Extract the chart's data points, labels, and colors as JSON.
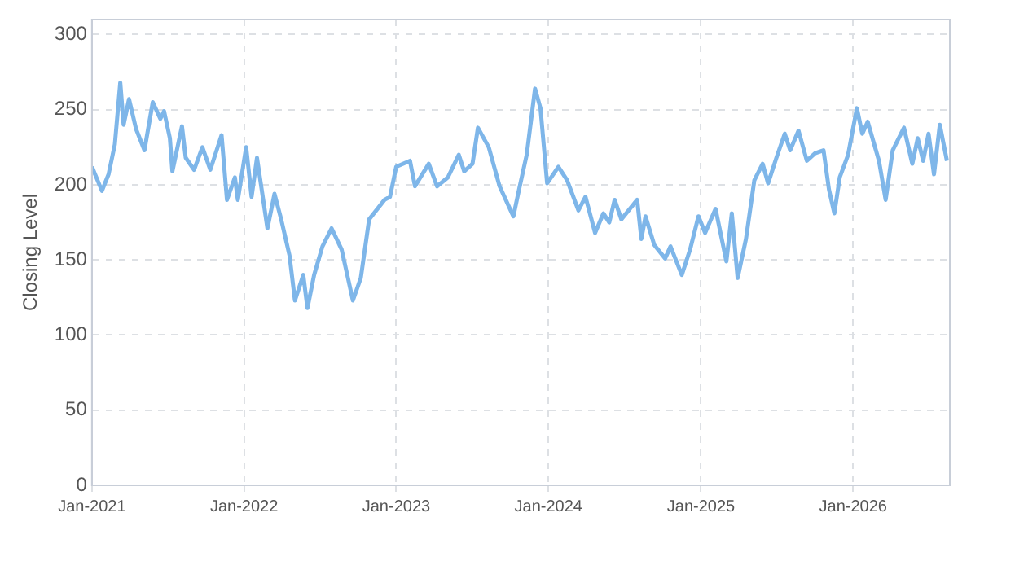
{
  "chart_data": {
    "type": "line",
    "ylabel": "Closing Level",
    "x": [
      "2021-01-01",
      "2021-01-25",
      "2021-02-10",
      "2021-02-25",
      "2021-03-10",
      "2021-03-18",
      "2021-03-31",
      "2021-04-17",
      "2021-05-07",
      "2021-05-27",
      "2021-06-14",
      "2021-06-23",
      "2021-07-07",
      "2021-07-13",
      "2021-08-05",
      "2021-08-14",
      "2021-09-03",
      "2021-09-23",
      "2021-10-12",
      "2021-11-08",
      "2021-11-21",
      "2021-12-10",
      "2021-12-17",
      "2022-01-06",
      "2022-01-19",
      "2022-02-01",
      "2022-02-26",
      "2022-03-15",
      "2022-03-31",
      "2022-04-20",
      "2022-05-03",
      "2022-05-23",
      "2022-06-02",
      "2022-06-18",
      "2022-07-08",
      "2022-07-30",
      "2022-08-23",
      "2022-09-19",
      "2022-10-08",
      "2022-10-28",
      "2022-12-04",
      "2022-12-17",
      "2023-01-01",
      "2023-02-03",
      "2023-02-15",
      "2023-03-20",
      "2023-04-09",
      "2023-05-05",
      "2023-05-31",
      "2023-06-13",
      "2023-07-03",
      "2023-07-16",
      "2023-08-11",
      "2023-09-06",
      "2023-10-09",
      "2023-10-22",
      "2023-11-10",
      "2023-11-30",
      "2023-12-13",
      "2023-12-29",
      "2024-01-25",
      "2024-02-15",
      "2024-03-13",
      "2024-03-30",
      "2024-04-22",
      "2024-05-12",
      "2024-05-26",
      "2024-06-08",
      "2024-06-24",
      "2024-08-01",
      "2024-08-11",
      "2024-08-21",
      "2024-09-11",
      "2024-10-07",
      "2024-10-20",
      "2024-11-16",
      "2024-12-06",
      "2024-12-26",
      "2025-01-11",
      "2025-02-05",
      "2025-03-03",
      "2025-03-16",
      "2025-03-30",
      "2025-04-19",
      "2025-05-09",
      "2025-05-29",
      "2025-06-11",
      "2025-07-01",
      "2025-07-21",
      "2025-08-03",
      "2025-08-23",
      "2025-09-12",
      "2025-10-02",
      "2025-10-22",
      "2025-11-04",
      "2025-11-17",
      "2025-11-30",
      "2025-12-20",
      "2026-01-10",
      "2026-01-23",
      "2026-02-05",
      "2026-03-04",
      "2026-03-20",
      "2026-04-06",
      "2026-05-03",
      "2026-05-23",
      "2026-06-05",
      "2026-06-18",
      "2026-07-01",
      "2026-07-14",
      "2026-07-28",
      "2026-08-14"
    ],
    "series": [
      {
        "color": "#7eb6e9",
        "values": [
          212,
          196,
          207,
          227,
          268,
          240,
          257,
          237,
          223,
          255,
          244,
          249,
          231,
          209,
          239,
          218,
          210,
          225,
          210,
          233,
          190,
          205,
          190,
          225,
          192,
          218,
          171,
          194,
          177,
          153,
          123,
          140,
          118,
          140,
          159,
          171,
          157,
          123,
          138,
          177,
          190,
          192,
          212,
          216,
          199,
          214,
          199,
          205,
          220,
          209,
          214,
          238,
          225,
          199,
          179,
          196,
          220,
          264,
          251,
          201,
          212,
          203,
          183,
          192,
          168,
          181,
          175,
          190,
          177,
          190,
          164,
          179,
          160,
          151,
          159,
          140,
          157,
          179,
          168,
          184,
          149,
          181,
          138,
          164,
          203,
          214,
          201,
          218,
          234,
          223,
          236,
          216,
          221,
          223,
          197,
          181,
          205,
          220,
          251,
          234,
          242,
          216,
          190,
          223,
          238,
          214,
          231,
          216,
          234,
          207,
          240,
          216
        ]
      }
    ],
    "xlim": [
      "2021-01-01",
      "2026-08-21"
    ],
    "xticks": [
      {
        "value": "2021-01-01",
        "label": "Jan-2021"
      },
      {
        "value": "2022-01-01",
        "label": "Jan-2022"
      },
      {
        "value": "2023-01-01",
        "label": "Jan-2023"
      },
      {
        "value": "2024-01-01",
        "label": "Jan-2024"
      },
      {
        "value": "2025-01-01",
        "label": "Jan-2025"
      },
      {
        "value": "2026-01-01",
        "label": "Jan-2026"
      }
    ],
    "ylim": [
      0,
      310
    ],
    "yticks": [
      0,
      50,
      100,
      150,
      200,
      250,
      300
    ],
    "grid": true,
    "marker": "none",
    "line_style": "solid"
  }
}
